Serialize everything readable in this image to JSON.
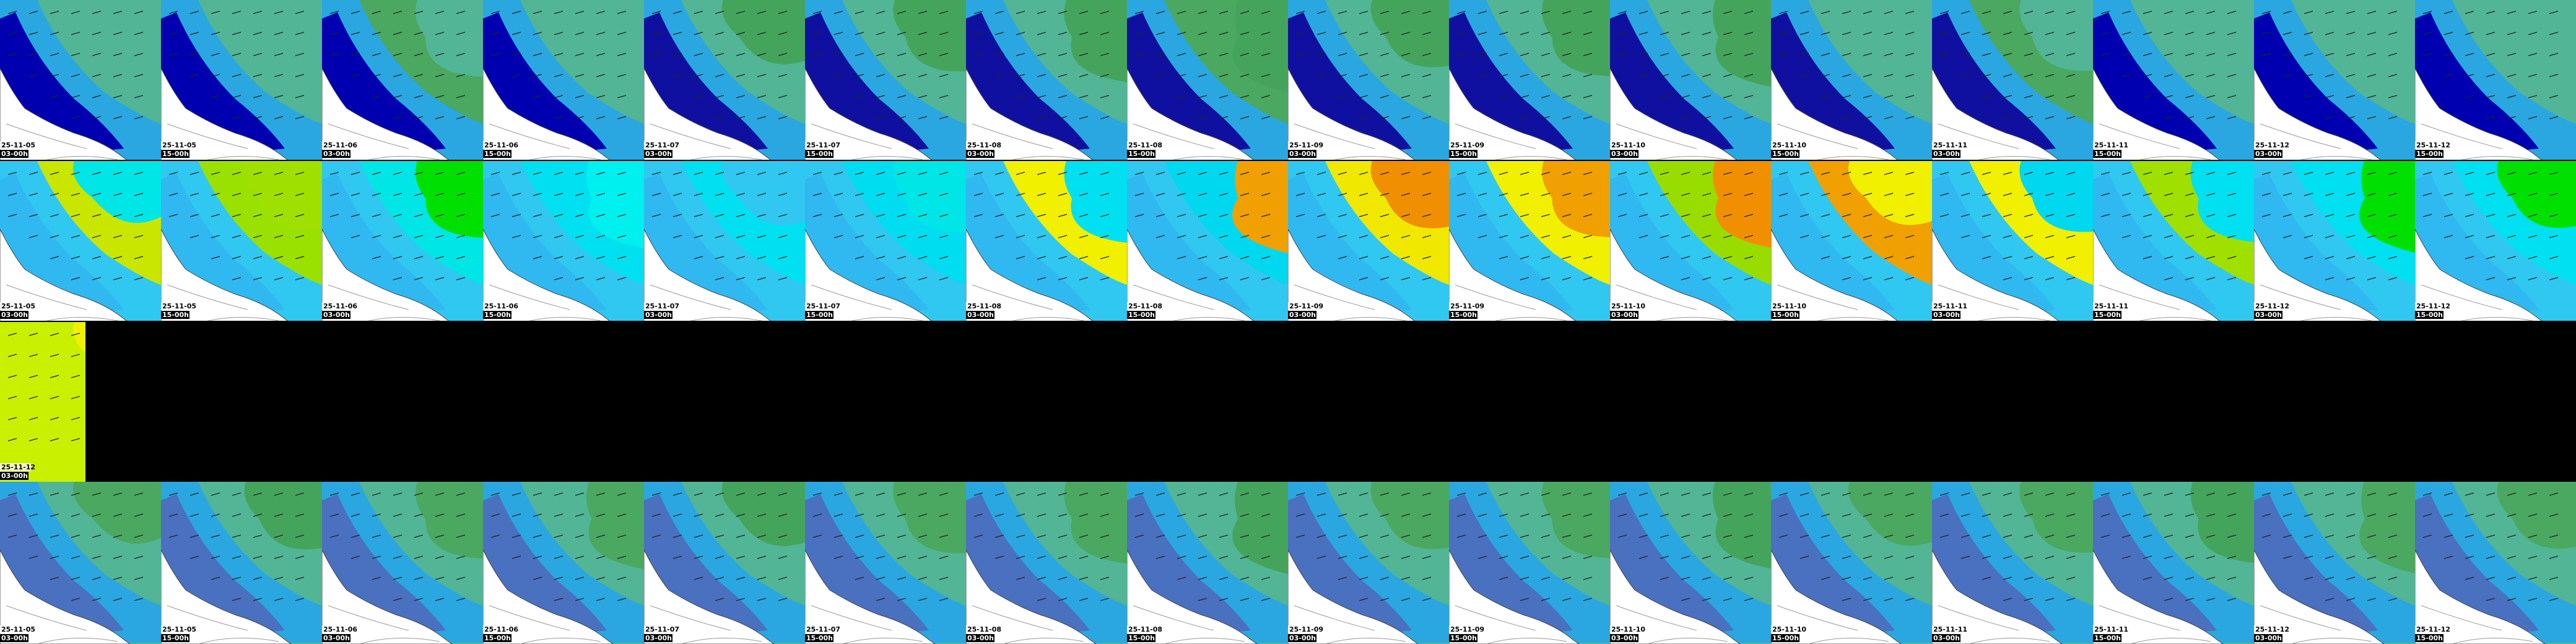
{
  "rows": [
    {
      "tiles": [
        {
          "date": "25-11-05",
          "time": "03-00h"
        },
        {
          "date": "25-11-05",
          "time": "15-00h"
        },
        {
          "date": "25-11-06",
          "time": "03-00h"
        },
        {
          "date": "25-11-06",
          "time": "15-00h"
        },
        {
          "date": "25-11-07",
          "time": "03-00h"
        },
        {
          "date": "25-11-07",
          "time": "15-00h"
        },
        {
          "date": "25-11-08",
          "time": "03-00h"
        },
        {
          "date": "25-11-08",
          "time": "15-00h"
        },
        {
          "date": "25-11-09",
          "time": "03-00h"
        },
        {
          "date": "25-11-09",
          "time": "15-00h"
        },
        {
          "date": "25-11-10",
          "time": "03-00h"
        },
        {
          "date": "25-11-10",
          "time": "15-00h"
        },
        {
          "date": "25-11-11",
          "time": "03-00h"
        },
        {
          "date": "25-11-11",
          "time": "15-00h"
        },
        {
          "date": "25-11-12",
          "time": "03-00h"
        },
        {
          "date": "25-11-12",
          "time": "15-00h"
        }
      ]
    },
    {
      "tiles": [
        {
          "date": "25-11-05",
          "time": "03-00h"
        },
        {
          "date": "25-11-05",
          "time": "15-00h"
        },
        {
          "date": "25-11-06",
          "time": "03-00h"
        },
        {
          "date": "25-11-06",
          "time": "15-00h"
        },
        {
          "date": "25-11-07",
          "time": "03-00h"
        },
        {
          "date": "25-11-07",
          "time": "15-00h"
        },
        {
          "date": "25-11-08",
          "time": "03-00h"
        },
        {
          "date": "25-11-08",
          "time": "15-00h"
        },
        {
          "date": "25-11-09",
          "time": "03-00h"
        },
        {
          "date": "25-11-09",
          "time": "15-00h"
        },
        {
          "date": "25-11-10",
          "time": "03-00h"
        },
        {
          "date": "25-11-10",
          "time": "15-00h"
        },
        {
          "date": "25-11-11",
          "time": "03-00h"
        },
        {
          "date": "25-11-11",
          "time": "15-00h"
        },
        {
          "date": "25-11-12",
          "time": "03-00h"
        },
        {
          "date": "25-11-12",
          "time": "15-00h"
        }
      ]
    },
    {
      "tiles": [
        {
          "date": "25-11-12",
          "time": "03-00h"
        }
      ]
    },
    {
      "tiles": [
        {
          "date": "25-11-05",
          "time": "03-00h"
        },
        {
          "date": "25-11-05",
          "time": "15-00h"
        },
        {
          "date": "25-11-06",
          "time": "03-00h"
        },
        {
          "date": "25-11-06",
          "time": "15-00h"
        },
        {
          "date": "25-11-07",
          "time": "03-00h"
        },
        {
          "date": "25-11-07",
          "time": "15-00h"
        },
        {
          "date": "25-11-08",
          "time": "03-00h"
        },
        {
          "date": "25-11-08",
          "time": "15-00h"
        },
        {
          "date": "25-11-09",
          "time": "03-00h"
        },
        {
          "date": "25-11-09",
          "time": "15-00h"
        },
        {
          "date": "25-11-10",
          "time": "03-00h"
        },
        {
          "date": "25-11-10",
          "time": "15-00h"
        },
        {
          "date": "25-11-11",
          "time": "03-00h"
        },
        {
          "date": "25-11-11",
          "time": "15-00h"
        },
        {
          "date": "25-11-12",
          "time": "03-00h"
        },
        {
          "date": "25-11-12",
          "time": "15-00h"
        }
      ]
    }
  ]
}
